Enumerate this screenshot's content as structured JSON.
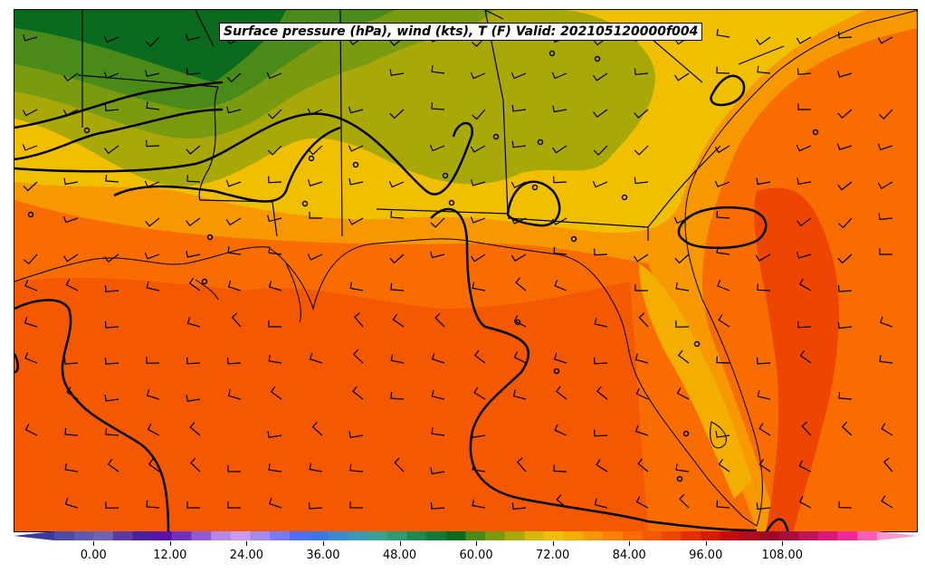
{
  "title": "Surface pressure (hPa), wind (kts), T (F) Valid: 202105120000f004",
  "colorbar": {
    "min": -6,
    "max": 123,
    "tick_values": [
      0,
      12,
      24,
      36,
      48,
      60,
      72,
      84,
      96,
      108
    ],
    "tick_labels": [
      "0.00",
      "12.00",
      "24.00",
      "36.00",
      "48.00",
      "60.00",
      "72.00",
      "84.00",
      "96.00",
      "108.00"
    ],
    "colors": [
      "#3a3aa0",
      "#4b4ba8",
      "#5e5ab0",
      "#6e63b2",
      "#5b3aa6",
      "#4a1ea0",
      "#5a12a8",
      "#7030c0",
      "#9158d8",
      "#b388e8",
      "#c89af0",
      "#a48af0",
      "#7a7af8",
      "#4e6ef8",
      "#3a78e8",
      "#3a8ad0",
      "#3a98b8",
      "#3aa090",
      "#2e9a70",
      "#1f8a50",
      "#127a38",
      "#0a6a1e",
      "#4a8a18",
      "#7a9a10",
      "#a8a808",
      "#d8b800",
      "#f0c000",
      "#f4ae00",
      "#f89800",
      "#fa8200",
      "#f86c00",
      "#f45800",
      "#ee4600",
      "#e42e00",
      "#d81a00",
      "#c80a10",
      "#b40a20",
      "#9c0a28",
      "#a8103c",
      "#c01458",
      "#dc1878",
      "#f42898",
      "#f860b8",
      "#fc98d0"
    ]
  },
  "map": {
    "fill_levels_F": [
      60,
      63,
      66,
      69,
      72,
      75,
      78,
      81
    ],
    "region": "Gulf of Mexico and southeastern United States",
    "features": [
      "state-borders",
      "coastline",
      "isobars",
      "wind-barbs",
      "station-circles"
    ]
  }
}
